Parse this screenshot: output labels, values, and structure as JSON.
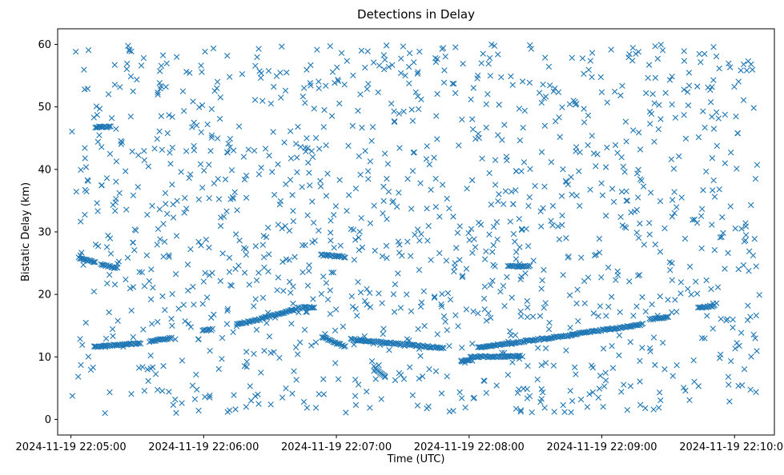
{
  "chart_data": {
    "type": "scatter",
    "title": "Detections in Delay",
    "xlabel": "Time (UTC)",
    "ylabel": "Bistatic Delay (km)",
    "x_unit": "seconds after 2024-11-19 22:05:00",
    "xlim": [
      -6,
      318
    ],
    "ylim": [
      -2.5,
      62.5
    ],
    "x_ticks": [
      0,
      60,
      120,
      180,
      240,
      300
    ],
    "x_tick_labels": [
      "2024-11-19 22:05:00",
      "2024-11-19 22:06:00",
      "2024-11-19 22:07:00",
      "2024-11-19 22:08:00",
      "2024-11-19 22:09:00",
      "2024-11-19 22:10:00"
    ],
    "y_ticks": [
      0,
      10,
      20,
      30,
      40,
      50,
      60
    ],
    "y_tick_labels": [
      "0",
      "10",
      "20",
      "30",
      "40",
      "50",
      "60"
    ],
    "marker": "x",
    "grid": false,
    "legend": "none",
    "series_color": "#1f77b4",
    "track_segments": [
      {
        "x": [
          10.5,
          31.5
        ],
        "y": [
          11.6,
          12.2
        ]
      },
      {
        "x": [
          35.5,
          45.5
        ],
        "y": [
          12.5,
          13.0
        ]
      },
      {
        "x": [
          59.5,
          64.0
        ],
        "y": [
          14.2,
          14.4
        ]
      },
      {
        "x": [
          75.0,
          85.5
        ],
        "y": [
          15.2,
          16.0
        ]
      },
      {
        "x": [
          86.0,
          102.0
        ],
        "y": [
          16.2,
          17.6
        ]
      },
      {
        "x": [
          102.5,
          110.0
        ],
        "y": [
          17.8,
          18.0
        ]
      },
      {
        "x": [
          113.0,
          124.0
        ],
        "y": [
          26.3,
          26.0
        ]
      },
      {
        "x": [
          113.5,
          124.0
        ],
        "y": [
          13.2,
          11.6
        ]
      },
      {
        "x": [
          126.5,
          168.5
        ],
        "y": [
          12.8,
          11.4
        ]
      },
      {
        "x": [
          137.0,
          142.0
        ],
        "y": [
          8.4,
          6.9
        ]
      },
      {
        "x": [
          176.5,
          181.5
        ],
        "y": [
          9.3,
          9.5
        ]
      },
      {
        "x": [
          184.0,
          226.5
        ],
        "y": [
          11.5,
          13.5
        ]
      },
      {
        "x": [
          226.5,
          258.5
        ],
        "y": [
          13.6,
          15.2
        ]
      },
      {
        "x": [
          261.5,
          270.0
        ],
        "y": [
          16.0,
          16.4
        ]
      },
      {
        "x": [
          283.5,
          291.0
        ],
        "y": [
          17.8,
          18.2
        ]
      },
      {
        "x": [
          3.5,
          11.0
        ],
        "y": [
          25.8,
          25.1
        ]
      },
      {
        "x": [
          13.5,
          21.0
        ],
        "y": [
          24.8,
          24.2
        ]
      },
      {
        "x": [
          11.0,
          18.0
        ],
        "y": [
          46.8,
          46.8
        ]
      },
      {
        "x": [
          197.5,
          207.5
        ],
        "y": [
          24.5,
          24.5
        ]
      },
      {
        "x": [
          180.5,
          203.0
        ],
        "y": [
          10.0,
          10.1
        ]
      }
    ],
    "scattered_points": {
      "count": 1300,
      "x_range": [
        0,
        312
      ],
      "y_range": [
        1,
        60
      ],
      "seed": 20241119
    }
  }
}
